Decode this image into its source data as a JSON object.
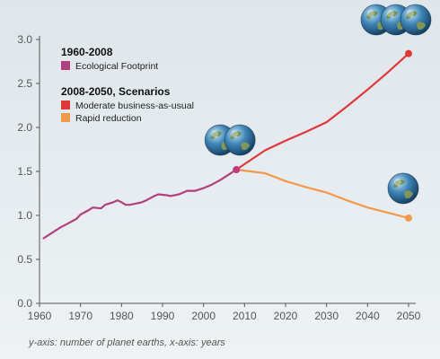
{
  "chart_data": {
    "type": "line",
    "caption": "y-axis: number of planet earths, x-axis: years",
    "xlim": [
      1960,
      2050
    ],
    "ylim": [
      0,
      3.0
    ],
    "x_ticks": [
      "1960",
      "1970",
      "1980",
      "1990",
      "2000",
      "2010",
      "2020",
      "2030",
      "2040",
      "2050"
    ],
    "y_ticks": [
      "0.0",
      "0.5",
      "1.0",
      "1.5",
      "2.0",
      "2.5",
      "3.0"
    ],
    "legend": {
      "group1_title": "1960-2008",
      "group2_title": "2008-2050, Scenarios",
      "placement": "top-left"
    },
    "series": [
      {
        "name": "Ecological Footprint",
        "color": "#b0407e",
        "x": [
          1961,
          1963,
          1965,
          1967,
          1969,
          1970,
          1972,
          1973,
          1975,
          1976,
          1978,
          1979,
          1980,
          1981,
          1982,
          1983,
          1985,
          1986,
          1988,
          1989,
          1991,
          1992,
          1994,
          1996,
          1998,
          2000,
          2002,
          2004,
          2006,
          2008
        ],
        "y": [
          0.74,
          0.8,
          0.86,
          0.91,
          0.96,
          1.01,
          1.06,
          1.09,
          1.08,
          1.12,
          1.15,
          1.17,
          1.15,
          1.12,
          1.12,
          1.13,
          1.15,
          1.17,
          1.22,
          1.24,
          1.23,
          1.22,
          1.24,
          1.28,
          1.28,
          1.31,
          1.35,
          1.4,
          1.46,
          1.52
        ]
      },
      {
        "name": "Moderate business-as-usual",
        "color": "#e0373a",
        "x": [
          2008,
          2015,
          2020,
          2025,
          2030,
          2035,
          2040,
          2045,
          2050
        ],
        "y": [
          1.52,
          1.74,
          1.85,
          1.95,
          2.06,
          2.24,
          2.43,
          2.63,
          2.84
        ]
      },
      {
        "name": "Rapid reduction",
        "color": "#f19a4c",
        "x": [
          2008,
          2015,
          2020,
          2025,
          2030,
          2035,
          2040,
          2045,
          2050
        ],
        "y": [
          1.52,
          1.48,
          1.39,
          1.32,
          1.26,
          1.17,
          1.09,
          1.03,
          0.97
        ]
      }
    ],
    "points": [
      {
        "x": 2008,
        "y": 1.52,
        "color": "#c0397b"
      },
      {
        "x": 2050,
        "y": 2.84,
        "color": "#e0373a"
      },
      {
        "x": 2050,
        "y": 0.97,
        "color": "#f19a4c"
      }
    ],
    "earth_icons": [
      {
        "count": 2,
        "anchor_x": 2008,
        "anchor_y": 1.52
      },
      {
        "count": 3,
        "anchor_x": 2050,
        "anchor_y": 2.84
      },
      {
        "count": 1,
        "anchor_x": 2050,
        "anchor_y": 0.97
      }
    ]
  }
}
